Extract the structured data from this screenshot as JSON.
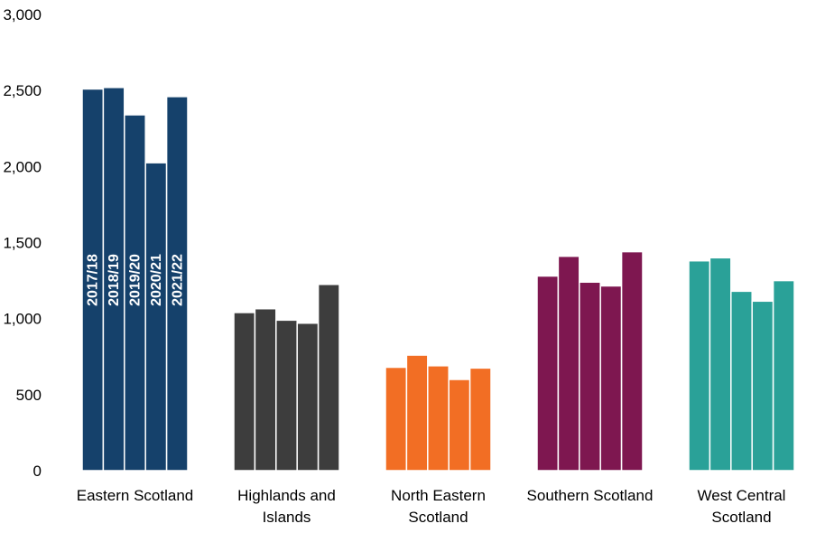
{
  "chart_data": {
    "type": "bar",
    "title": "",
    "xlabel": "",
    "ylabel": "",
    "ylim": [
      0,
      3000
    ],
    "yticks": [
      "0",
      "500",
      "1,000",
      "1,500",
      "2,000",
      "2,500",
      "3,000"
    ],
    "ytick_values": [
      0,
      500,
      1000,
      1500,
      2000,
      2500,
      3000
    ],
    "grid": false,
    "legend": "none",
    "categories": [
      {
        "line1": "Eastern Scotland",
        "line2": ""
      },
      {
        "line1": "Highlands and",
        "line2": "Islands"
      },
      {
        "line1": "North Eastern",
        "line2": "Scotland"
      },
      {
        "line1": "Southern Scotland",
        "line2": ""
      },
      {
        "line1": "West Central",
        "line2": "Scotland"
      }
    ],
    "bar_labels": [
      "2017/18",
      "2018/19",
      "2019/20",
      "2020/21",
      "2021/22"
    ],
    "colors": [
      "#15416b",
      "#3d3d3d",
      "#f26e24",
      "#7e1750",
      "#2aa198"
    ],
    "values": [
      [
        2510,
        2520,
        2340,
        2025,
        2460
      ],
      [
        1040,
        1065,
        990,
        970,
        1225
      ],
      [
        680,
        760,
        690,
        600,
        675
      ],
      [
        1280,
        1410,
        1240,
        1215,
        1440
      ],
      [
        1380,
        1400,
        1180,
        1115,
        1250
      ]
    ]
  }
}
